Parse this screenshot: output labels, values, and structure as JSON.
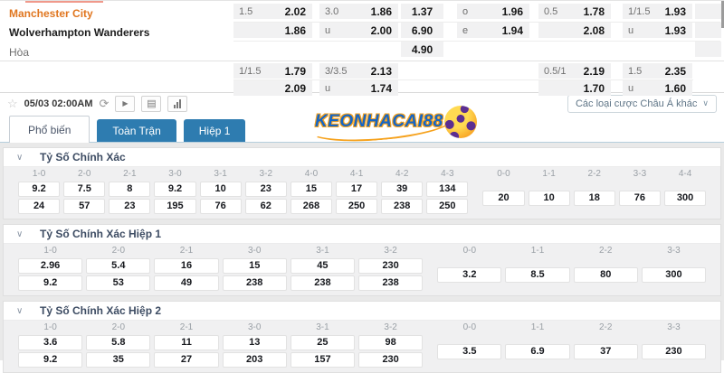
{
  "teams": {
    "home": "Manchester City",
    "away": "Wolverhampton Wanderers",
    "draw_label": "Hòa"
  },
  "board": {
    "rows": [
      [
        {
          "g": 0,
          "label": "1.5",
          "value": "2.02"
        },
        {
          "g": 1,
          "label": "3.0",
          "value": "1.86"
        },
        {
          "g": 2,
          "label": "",
          "value": "1.37"
        },
        {
          "g": 3,
          "label": "o",
          "value": "1.96"
        },
        {
          "g": 4,
          "label": "0.5",
          "value": "1.78"
        },
        {
          "g": 5,
          "label": "1/1.5",
          "value": "1.93"
        },
        {
          "g": 6,
          "label": "",
          "value": ""
        }
      ],
      [
        {
          "g": 0,
          "label": "",
          "value": "1.86"
        },
        {
          "g": 1,
          "label": "u",
          "value": "2.00"
        },
        {
          "g": 2,
          "label": "",
          "value": "6.90"
        },
        {
          "g": 3,
          "label": "e",
          "value": "1.94"
        },
        {
          "g": 4,
          "label": "",
          "value": "2.08"
        },
        {
          "g": 5,
          "label": "u",
          "value": "1.93"
        },
        {
          "g": 6,
          "label": "",
          "value": ""
        }
      ],
      [
        {
          "g": 2,
          "label": "",
          "value": "4.90"
        },
        {
          "g": 6,
          "label": "",
          "value": ""
        }
      ],
      [
        {
          "g": 0,
          "label": "1/1.5",
          "value": "1.79"
        },
        {
          "g": 1,
          "label": "3/3.5",
          "value": "2.13"
        },
        {
          "g": 4,
          "label": "0.5/1",
          "value": "2.19"
        },
        {
          "g": 5,
          "label": "1.5",
          "value": "2.35"
        }
      ],
      [
        {
          "g": 0,
          "label": "",
          "value": "2.09"
        },
        {
          "g": 1,
          "label": "u",
          "value": "1.74"
        },
        {
          "g": 4,
          "label": "",
          "value": "1.70"
        },
        {
          "g": 5,
          "label": "u",
          "value": "1.60"
        }
      ]
    ]
  },
  "toolbar": {
    "date": "05/03 02:00AM",
    "asian_bets_button": "Các loại cược Châu Á khác",
    "icons": [
      "favorite-star",
      "refresh",
      "play",
      "lineup",
      "stats"
    ]
  },
  "tabs": [
    {
      "label": "Phổ biến",
      "active": true
    },
    {
      "label": "Toàn Trận",
      "active": false
    },
    {
      "label": "Hiệp 1",
      "active": false
    }
  ],
  "watermark": {
    "text": "KEONHACAI88"
  },
  "sections": [
    {
      "title": "Tỷ Số Chính Xác",
      "score_columns": [
        {
          "score": "1-0",
          "home": "9.2",
          "away": "24"
        },
        {
          "score": "2-0",
          "home": "7.5",
          "away": "57"
        },
        {
          "score": "2-1",
          "home": "8",
          "away": "23"
        },
        {
          "score": "3-0",
          "home": "9.2",
          "away": "195"
        },
        {
          "score": "3-1",
          "home": "10",
          "away": "76"
        },
        {
          "score": "3-2",
          "home": "23",
          "away": "62"
        },
        {
          "score": "4-0",
          "home": "15",
          "away": "268"
        },
        {
          "score": "4-1",
          "home": "17",
          "away": "250"
        },
        {
          "score": "4-2",
          "home": "39",
          "away": "238"
        },
        {
          "score": "4-3",
          "home": "134",
          "away": "250"
        }
      ],
      "draw_columns": [
        {
          "score": "0-0",
          "odds": "20"
        },
        {
          "score": "1-1",
          "odds": "10"
        },
        {
          "score": "2-2",
          "odds": "18"
        },
        {
          "score": "3-3",
          "odds": "76"
        },
        {
          "score": "4-4",
          "odds": "300"
        }
      ]
    },
    {
      "title": "Tỷ Số Chính Xác Hiệp 1",
      "score_columns": [
        {
          "score": "1-0",
          "home": "2.96",
          "away": "9.2"
        },
        {
          "score": "2-0",
          "home": "5.4",
          "away": "53"
        },
        {
          "score": "2-1",
          "home": "16",
          "away": "49"
        },
        {
          "score": "3-0",
          "home": "15",
          "away": "238"
        },
        {
          "score": "3-1",
          "home": "45",
          "away": "238"
        },
        {
          "score": "3-2",
          "home": "230",
          "away": "238"
        }
      ],
      "draw_columns": [
        {
          "score": "0-0",
          "odds": "3.2"
        },
        {
          "score": "1-1",
          "odds": "8.5"
        },
        {
          "score": "2-2",
          "odds": "80"
        },
        {
          "score": "3-3",
          "odds": "300"
        }
      ]
    },
    {
      "title": "Tỷ Số Chính Xác Hiệp 2",
      "score_columns": [
        {
          "score": "1-0",
          "home": "3.6",
          "away": "9.2"
        },
        {
          "score": "2-0",
          "home": "5.8",
          "away": "35"
        },
        {
          "score": "2-1",
          "home": "11",
          "away": "27"
        },
        {
          "score": "3-0",
          "home": "13",
          "away": "203"
        },
        {
          "score": "3-1",
          "home": "25",
          "away": "157"
        },
        {
          "score": "3-2",
          "home": "98",
          "away": "230"
        }
      ],
      "draw_columns": [
        {
          "score": "0-0",
          "odds": "3.5"
        },
        {
          "score": "1-1",
          "odds": "6.9"
        },
        {
          "score": "2-2",
          "odds": "37"
        },
        {
          "score": "3-3",
          "odds": "230"
        }
      ]
    }
  ],
  "colors": {
    "tab_blue": "#2e7cb0",
    "home_team_orange": "#e0761f",
    "cell_bg": "#f1f1f2",
    "watermark_blue": "#1565c5",
    "watermark_orange": "#f6a21d"
  }
}
